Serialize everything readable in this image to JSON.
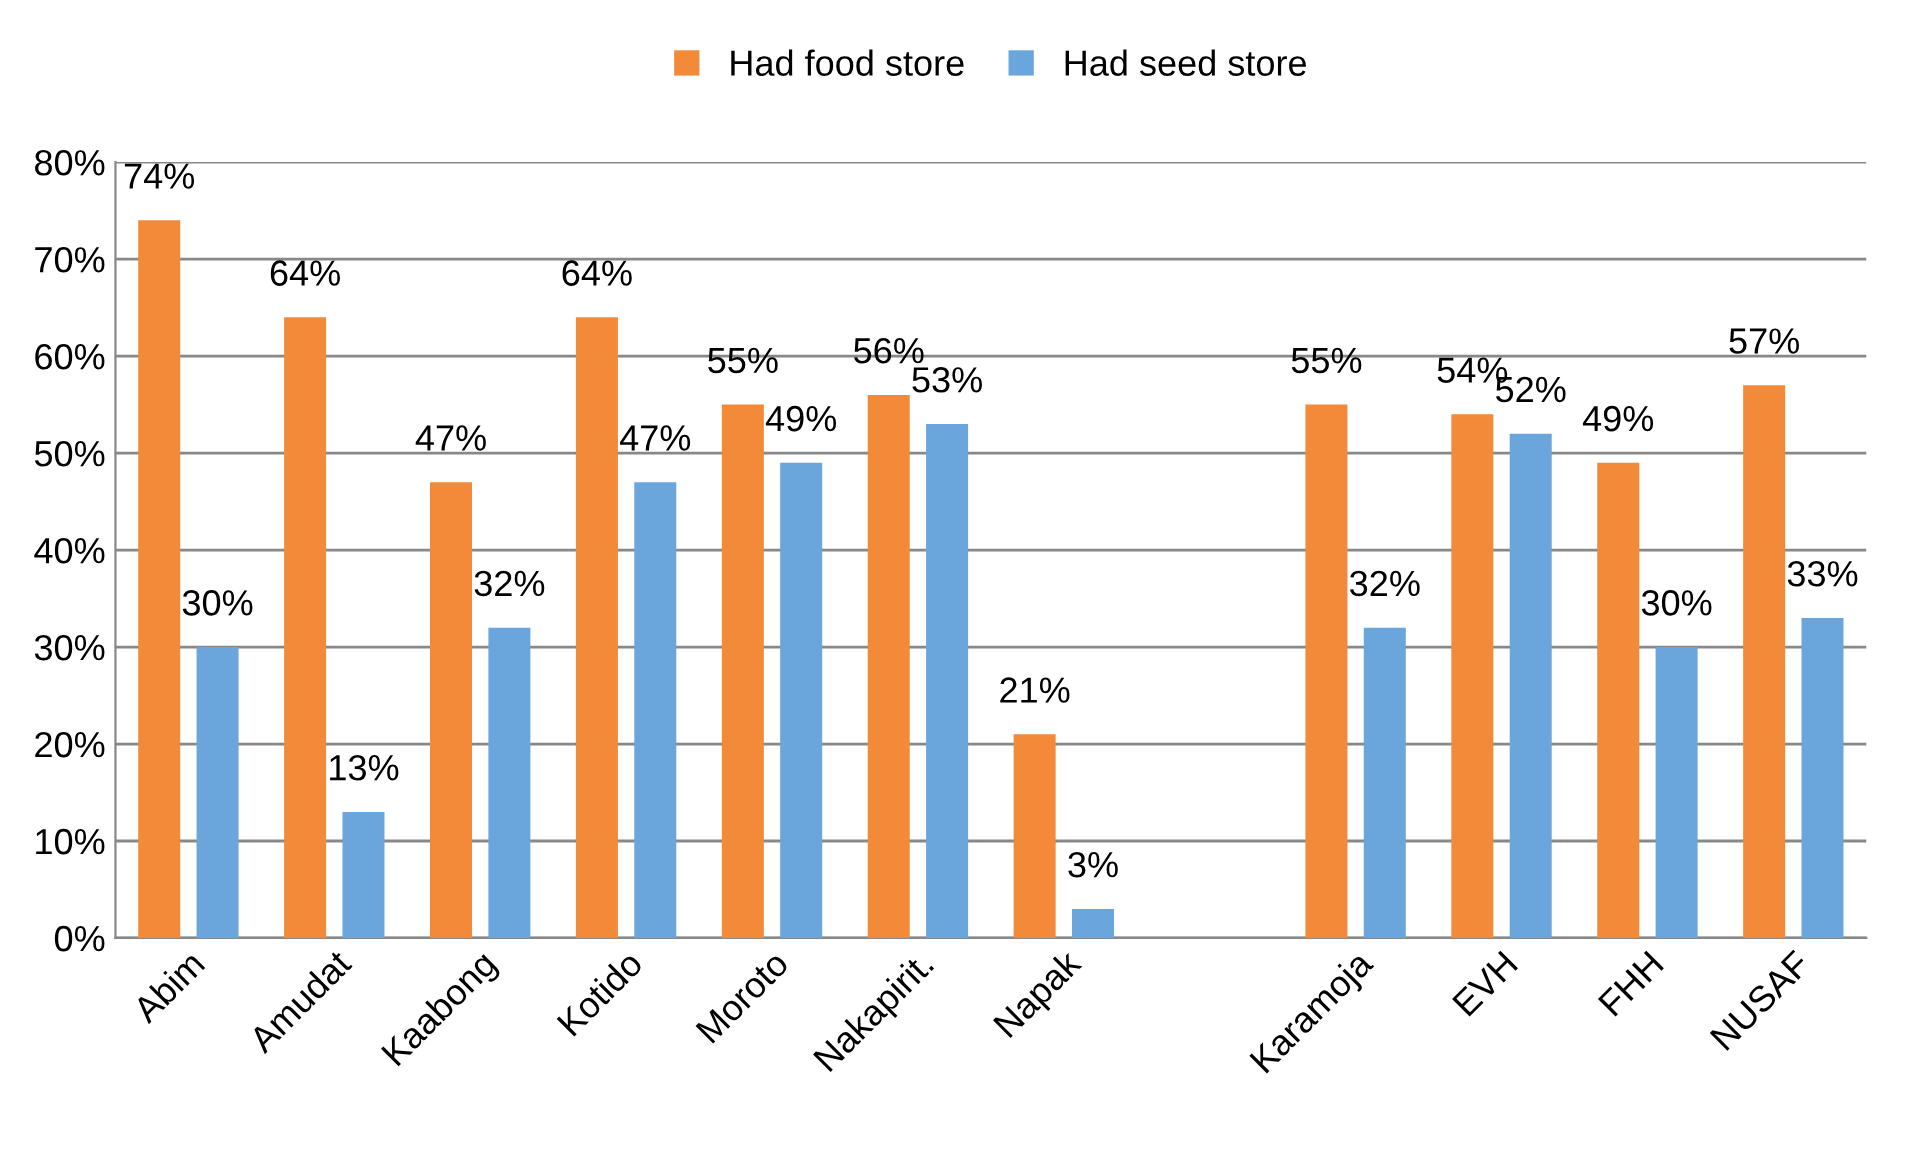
{
  "chart_data": {
    "type": "bar",
    "categories": [
      "Abim",
      "Amudat",
      "Kaabong",
      "Kotido",
      "Moroto",
      "Nakapirit.",
      "Napak",
      null,
      "Karamoja",
      "EVH",
      "FHH",
      "NUSAF"
    ],
    "series": [
      {
        "name": "Had food store",
        "color": "#f28a3a",
        "values": [
          74,
          64,
          47,
          64,
          55,
          56,
          21,
          null,
          55,
          54,
          49,
          57
        ],
        "value_labels": [
          "74%",
          "64%",
          "47%",
          "64%",
          "55%",
          "56%",
          "21%",
          null,
          "55%",
          "54%",
          "49%",
          "57%"
        ]
      },
      {
        "name": "Had seed store",
        "color": "#6aa6dc",
        "values": [
          30,
          13,
          32,
          47,
          49,
          53,
          3,
          null,
          32,
          52,
          30,
          33
        ],
        "value_labels": [
          "30%",
          "13%",
          "32%",
          "47%",
          "49%",
          "53%",
          "3%",
          null,
          "32%",
          "52%",
          "30%",
          "33%"
        ]
      }
    ],
    "ylim": [
      0,
      80
    ],
    "yticks": [
      {
        "value": 0,
        "label": "0%"
      },
      {
        "value": 10,
        "label": "10%"
      },
      {
        "value": 20,
        "label": "20%"
      },
      {
        "value": 30,
        "label": "30%"
      },
      {
        "value": 40,
        "label": "40%"
      },
      {
        "value": 50,
        "label": "50%"
      },
      {
        "value": 60,
        "label": "60%"
      },
      {
        "value": 70,
        "label": "70%"
      },
      {
        "value": 80,
        "label": "80%"
      }
    ],
    "grid": "y",
    "legend": "top"
  }
}
